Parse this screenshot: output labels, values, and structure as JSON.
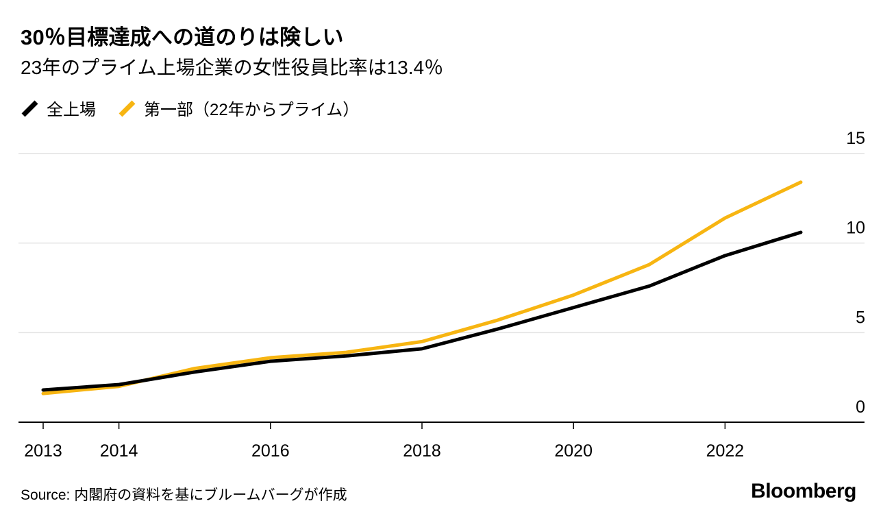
{
  "header": {
    "title": "30％目標達成への道のりは険しい",
    "subtitle": "23年のプライム上場企業の女性役員比率は13.4％"
  },
  "legend": [
    {
      "label": "全上場",
      "color": "#000000"
    },
    {
      "label": "第一部（22年からプライム）",
      "color": "#F7B512"
    }
  ],
  "footer": {
    "source": "Source: 内閣府の資料を基にブルームバーグが作成",
    "brand": "Bloomberg"
  },
  "chart_data": {
    "type": "line",
    "title": "30％目標達成への道のりは険しい",
    "subtitle": "23年のプライム上場企業の女性役員比率は13.4％",
    "unit": "%",
    "x": [
      2013,
      2014,
      2015,
      2016,
      2017,
      2018,
      2019,
      2020,
      2021,
      2022,
      2023
    ],
    "series": [
      {
        "name": "全上場",
        "color": "#000000",
        "values": [
          1.8,
          2.1,
          2.8,
          3.4,
          3.7,
          4.1,
          5.2,
          6.4,
          7.6,
          9.3,
          10.6
        ]
      },
      {
        "name": "第一部（22年からプライム）",
        "color": "#F7B512",
        "values": [
          1.6,
          2.0,
          3.0,
          3.6,
          3.9,
          4.5,
          5.7,
          7.1,
          8.8,
          11.4,
          13.4
        ]
      }
    ],
    "ylim": [
      0,
      15
    ],
    "yticks": [
      0,
      5,
      10,
      15
    ],
    "xticks": [
      2013,
      2014,
      2016,
      2018,
      2020,
      2022
    ],
    "grid": "horizontal",
    "legend_position": "top-left",
    "y_axis_side": "right",
    "colors": {
      "grid": "#E2E2E2",
      "axis": "#000000"
    }
  }
}
